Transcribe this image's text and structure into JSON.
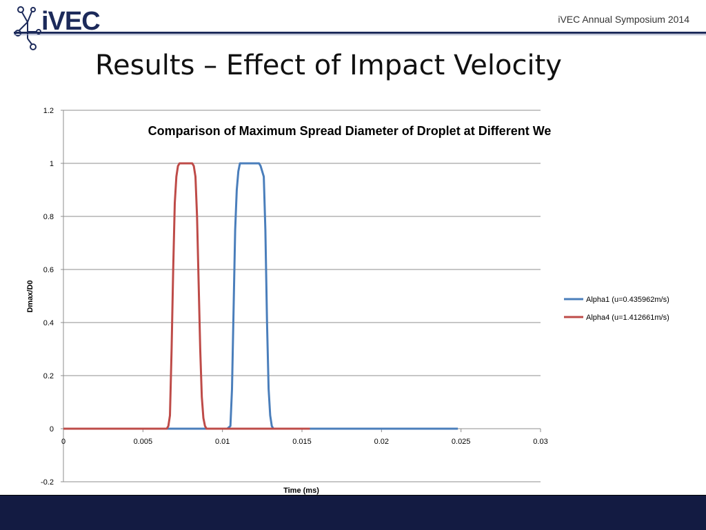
{
  "header": {
    "logo_text": "iVEC",
    "event": "iVEC Annual Symposium 2014",
    "title": "Results – Effect of Impact Velocity",
    "brand_color": "#1c2a5a"
  },
  "footer": {
    "color": "#131b42"
  },
  "chart_data": {
    "type": "line",
    "title": "Comparison of Maximum Spread Diameter of Droplet at Different We",
    "xlabel": "Time (ms)",
    "ylabel": "Dmax/D0",
    "xlim": [
      0,
      0.03
    ],
    "ylim": [
      -0.2,
      1.2
    ],
    "xticks": [
      "0",
      "0.005",
      "0.01",
      "0.015",
      "0.02",
      "0.025",
      "0.03"
    ],
    "xtick_values": [
      0,
      0.005,
      0.01,
      0.015,
      0.02,
      0.025,
      0.03
    ],
    "yticks": [
      "-0.2",
      "0",
      "0.2",
      "0.4",
      "0.6",
      "0.8",
      "1",
      "1.2"
    ],
    "ytick_values": [
      -0.2,
      0,
      0.2,
      0.4,
      0.6,
      0.8,
      1,
      1.2
    ],
    "grid": true,
    "legend_position": "right",
    "series": [
      {
        "name": "Alpha1 (u=0.435962m/s)",
        "color": "#4a7ebb",
        "x": [
          0,
          0.0103,
          0.0105,
          0.0106,
          0.0107,
          0.0108,
          0.0109,
          0.011,
          0.0111,
          0.0112,
          0.0113,
          0.0115,
          0.012,
          0.0123,
          0.0124,
          0.0125,
          0.0126,
          0.0127,
          0.0128,
          0.0129,
          0.013,
          0.0131,
          0.0132,
          0.014,
          0.0248
        ],
        "y": [
          0,
          0,
          0.01,
          0.15,
          0.45,
          0.75,
          0.9,
          0.97,
          1.0,
          1.0,
          1.0,
          1.0,
          1.0,
          1.0,
          0.99,
          0.97,
          0.95,
          0.75,
          0.4,
          0.15,
          0.05,
          0.01,
          0,
          0,
          0
        ]
      },
      {
        "name": "Alpha4 (u=1.412661m/s)",
        "color": "#be4b48",
        "x": [
          0,
          0.0065,
          0.0066,
          0.0067,
          0.0068,
          0.0069,
          0.007,
          0.0071,
          0.0072,
          0.0073,
          0.0075,
          0.008,
          0.0081,
          0.0082,
          0.0083,
          0.0084,
          0.0085,
          0.0086,
          0.0087,
          0.0088,
          0.0089,
          0.009,
          0.0091,
          0.01,
          0.0155
        ],
        "y": [
          0,
          0,
          0.01,
          0.05,
          0.3,
          0.6,
          0.85,
          0.95,
          0.99,
          1.0,
          1.0,
          1.0,
          1.0,
          0.99,
          0.95,
          0.8,
          0.55,
          0.3,
          0.12,
          0.04,
          0.01,
          0,
          0,
          0,
          0
        ]
      }
    ]
  }
}
